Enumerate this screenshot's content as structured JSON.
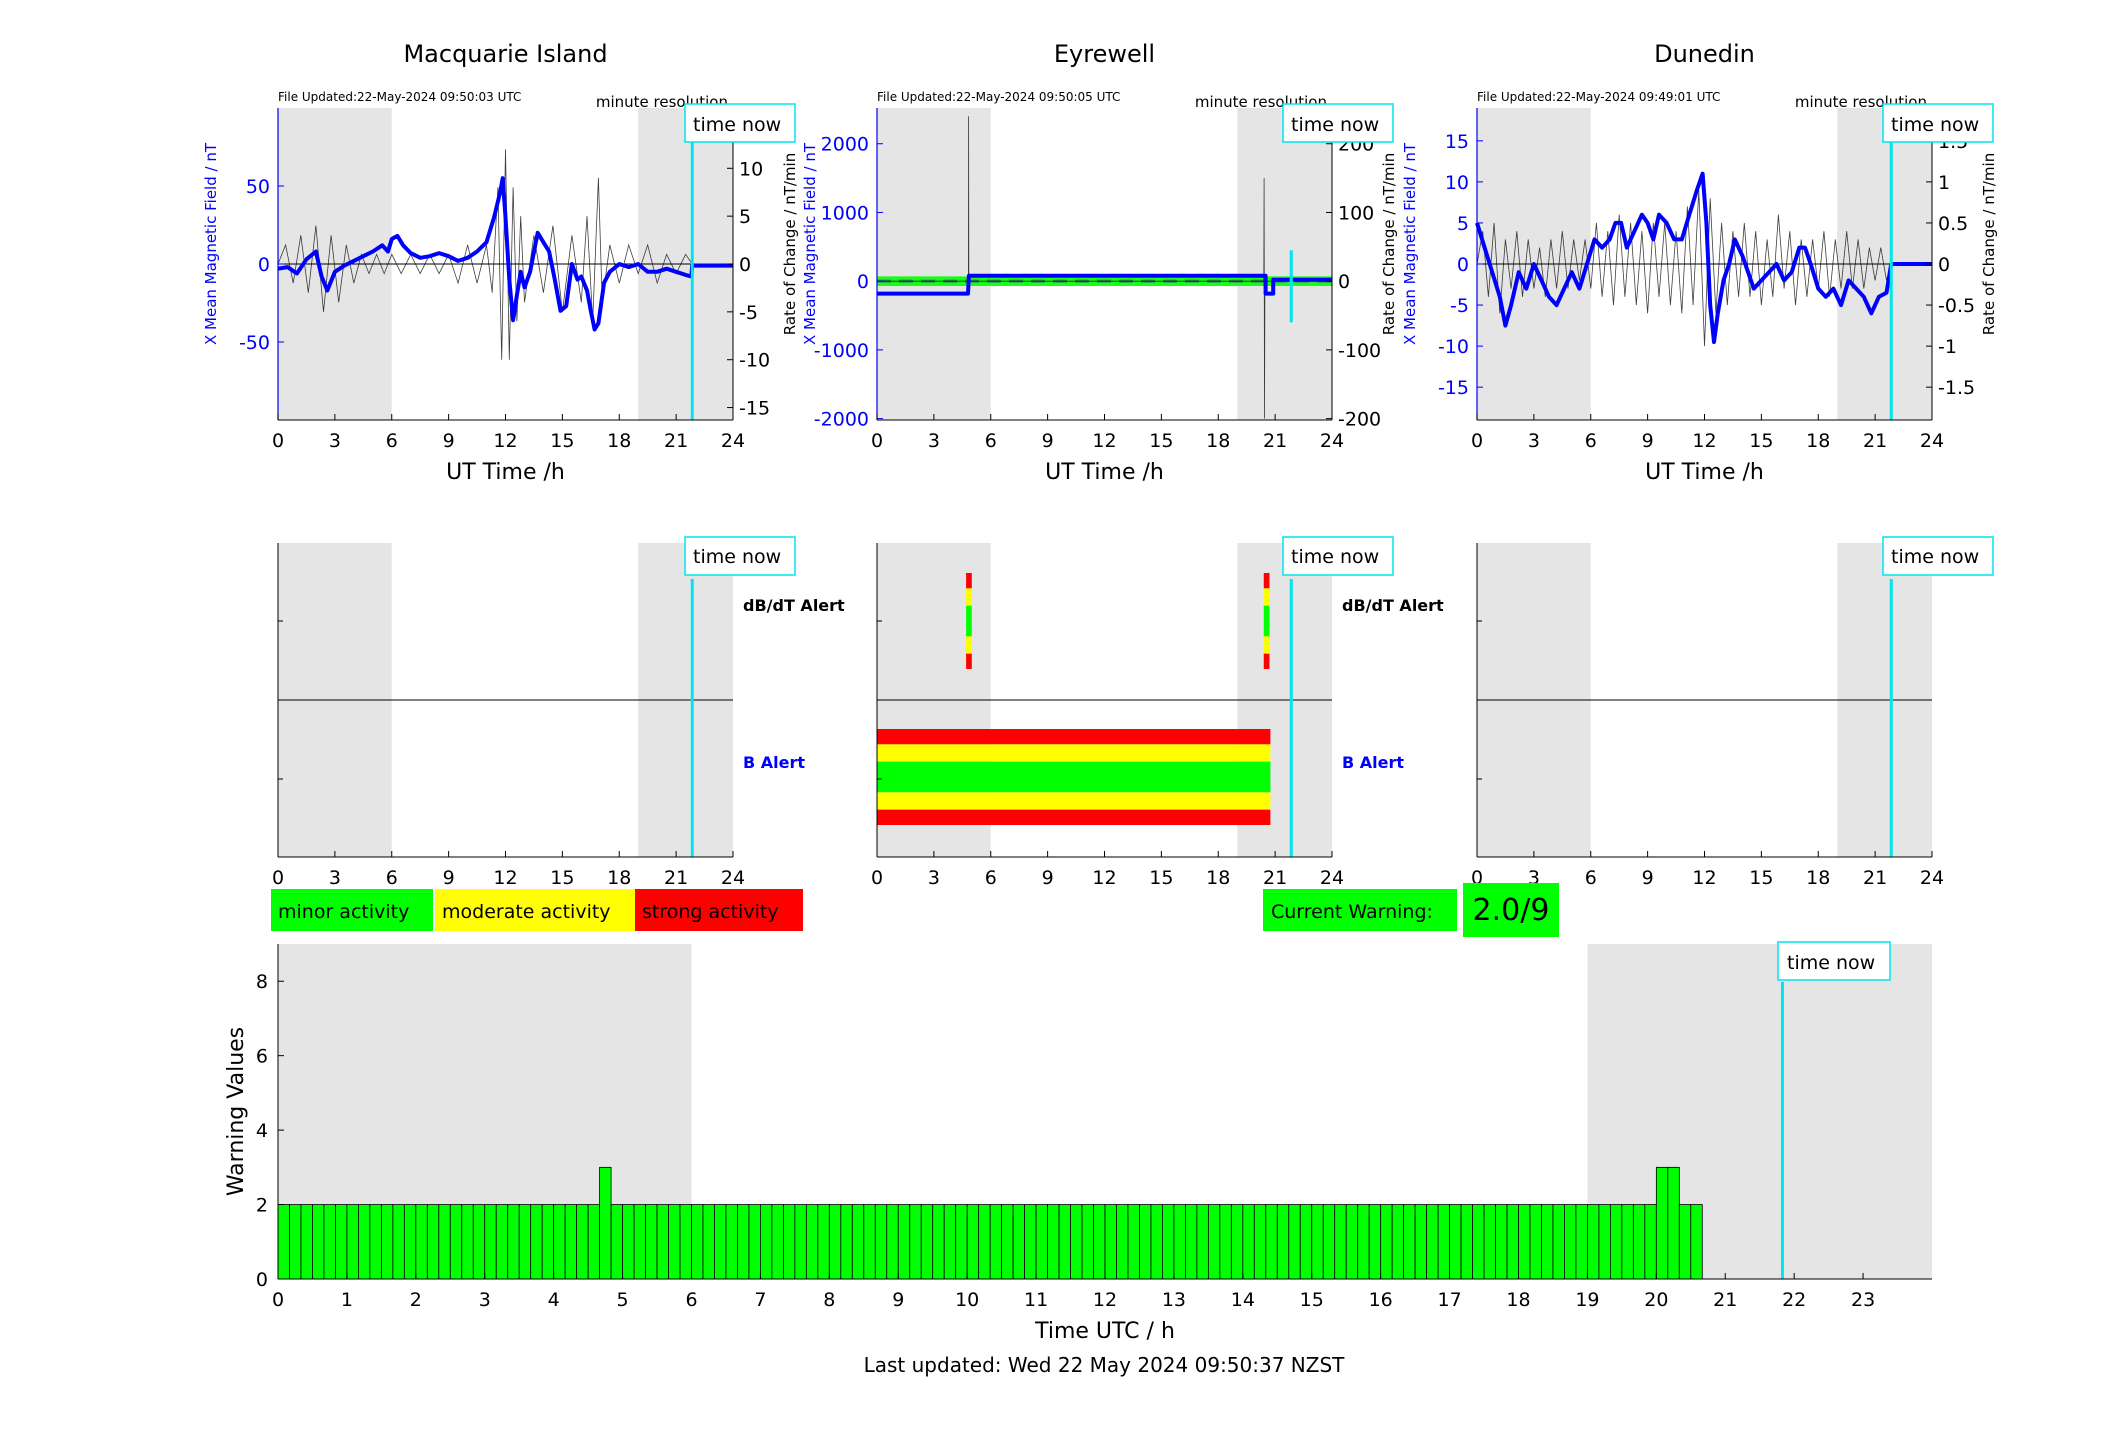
{
  "colors": {
    "x_field": "#0000ff",
    "rate": "#000000",
    "time_now": "#00e5ee",
    "night_shade": "#e5e5e5",
    "minor": "#00ff00",
    "moderate": "#ffff00",
    "strong": "#ff0000",
    "warning_bar": "#00ff00",
    "baseline_dash": "#2e8b57"
  },
  "time_now_label": "time now",
  "footer": {
    "last_updated": "Last updated: Wed 22 May 2024 09:50:37 NZST"
  },
  "legend": {
    "minor": "minor activity",
    "moderate": "moderate activity",
    "strong": "strong activity"
  },
  "current_warning": {
    "label": "Current Warning:",
    "value": "2.0/9"
  },
  "alert_labels": {
    "dbdt": "dB/dT Alert",
    "b": "B Alert"
  },
  "stations": [
    {
      "name": "Macquarie Island",
      "file_updated": "File Updated:22-May-2024 09:50:03 UTC",
      "resolution": "minute resolution",
      "left_label": "X Mean Magnetic Field / nT",
      "right_label": "Rate of Change / nT/min",
      "left_ylim": [
        -100,
        100
      ],
      "left_ticks": [
        -50,
        0,
        50
      ],
      "right_ylim": [
        -16.3,
        16.3
      ],
      "right_ticks": [
        -15,
        -10,
        -5,
        0,
        5,
        10,
        15
      ],
      "x_ticks": [
        0,
        3,
        6,
        9,
        12,
        15,
        18,
        21,
        24
      ],
      "x_label": "UT Time /h",
      "time_now": 21.85,
      "x_series": [
        [
          0,
          -3
        ],
        [
          0.5,
          -2
        ],
        [
          1,
          -6
        ],
        [
          1.5,
          3
        ],
        [
          2,
          8
        ],
        [
          2.3,
          -8
        ],
        [
          2.6,
          -17
        ],
        [
          3,
          -5
        ],
        [
          3.5,
          -1
        ],
        [
          4,
          2
        ],
        [
          4.5,
          5
        ],
        [
          5,
          8
        ],
        [
          5.5,
          12
        ],
        [
          5.8,
          8
        ],
        [
          6,
          16
        ],
        [
          6.3,
          18
        ],
        [
          6.6,
          12
        ],
        [
          7,
          7
        ],
        [
          7.5,
          4
        ],
        [
          8,
          5
        ],
        [
          8.5,
          7
        ],
        [
          9,
          5
        ],
        [
          9.5,
          2
        ],
        [
          10,
          4
        ],
        [
          10.5,
          8
        ],
        [
          11,
          14
        ],
        [
          11.4,
          30
        ],
        [
          11.7,
          45
        ],
        [
          11.85,
          55
        ],
        [
          12,
          30
        ],
        [
          12.2,
          -10
        ],
        [
          12.4,
          -36
        ],
        [
          12.6,
          -20
        ],
        [
          12.8,
          -5
        ],
        [
          13,
          -15
        ],
        [
          13.3,
          -5
        ],
        [
          13.7,
          20
        ],
        [
          14,
          14
        ],
        [
          14.3,
          8
        ],
        [
          14.6,
          -10
        ],
        [
          14.9,
          -30
        ],
        [
          15.2,
          -27
        ],
        [
          15.5,
          0
        ],
        [
          15.8,
          -10
        ],
        [
          16,
          -8
        ],
        [
          16.3,
          -17
        ],
        [
          16.5,
          -30
        ],
        [
          16.7,
          -42
        ],
        [
          16.9,
          -38
        ],
        [
          17.2,
          -12
        ],
        [
          17.5,
          -5
        ],
        [
          18,
          0
        ],
        [
          18.5,
          -2
        ],
        [
          19,
          0
        ],
        [
          19.5,
          -5
        ],
        [
          20,
          -5
        ],
        [
          20.5,
          -3
        ],
        [
          21,
          -5
        ],
        [
          21.5,
          -7
        ],
        [
          21.8,
          -8
        ],
        [
          21.85,
          -1
        ],
        [
          24,
          -1
        ]
      ],
      "rate_series": [
        [
          0,
          0
        ],
        [
          0.4,
          2
        ],
        [
          0.8,
          -2
        ],
        [
          1.2,
          3
        ],
        [
          1.6,
          -3
        ],
        [
          2,
          4
        ],
        [
          2.4,
          -5
        ],
        [
          2.8,
          3
        ],
        [
          3.2,
          -4
        ],
        [
          3.6,
          2
        ],
        [
          4,
          -2
        ],
        [
          4.4,
          1
        ],
        [
          4.8,
          -1
        ],
        [
          5.2,
          1
        ],
        [
          5.6,
          -1
        ],
        [
          6,
          1
        ],
        [
          6.5,
          -1
        ],
        [
          7,
          1
        ],
        [
          7.5,
          -1
        ],
        [
          8,
          1
        ],
        [
          8.5,
          -1
        ],
        [
          9,
          1
        ],
        [
          9.5,
          -2
        ],
        [
          10,
          2
        ],
        [
          10.5,
          -2
        ],
        [
          11,
          2
        ],
        [
          11.3,
          -3
        ],
        [
          11.6,
          8
        ],
        [
          11.8,
          -10
        ],
        [
          12,
          12
        ],
        [
          12.2,
          -10
        ],
        [
          12.4,
          8
        ],
        [
          12.6,
          -6
        ],
        [
          12.8,
          5
        ],
        [
          13,
          -4
        ],
        [
          13.5,
          3
        ],
        [
          14,
          -3
        ],
        [
          14.5,
          4
        ],
        [
          15,
          -5
        ],
        [
          15.5,
          3
        ],
        [
          16,
          -4
        ],
        [
          16.3,
          5
        ],
        [
          16.6,
          -6
        ],
        [
          16.9,
          9
        ],
        [
          17.1,
          -4
        ],
        [
          17.5,
          2
        ],
        [
          18,
          -2
        ],
        [
          18.5,
          2
        ],
        [
          19,
          -1
        ],
        [
          19.5,
          2
        ],
        [
          20,
          -2
        ],
        [
          20.5,
          1
        ],
        [
          21,
          -1
        ],
        [
          21.5,
          1
        ],
        [
          21.85,
          0
        ],
        [
          24,
          0
        ]
      ],
      "alerts": {
        "dbdt": [],
        "b": []
      }
    },
    {
      "name": "Eyrewell",
      "file_updated": "File Updated:22-May-2024 09:50:05 UTC",
      "resolution": "minute resolution",
      "left_label": "X Mean Magnetic Field / nT",
      "right_label": "Rate of Change / nT/min",
      "left_ylim": [
        -2020,
        2520
      ],
      "left_ticks": [
        -2000,
        -1000,
        0,
        1000,
        2000
      ],
      "right_ylim": [
        -202,
        252
      ],
      "right_ticks": [
        -200,
        -100,
        0,
        100,
        200
      ],
      "x_ticks": [
        0,
        3,
        6,
        9,
        12,
        15,
        18,
        21,
        24
      ],
      "x_label": "UT Time /h",
      "time_now": 21.85,
      "x_series": [
        [
          0,
          -180
        ],
        [
          4.8,
          -180
        ],
        [
          4.85,
          80
        ],
        [
          20.5,
          80
        ],
        [
          20.5,
          -180
        ],
        [
          20.9,
          -180
        ],
        [
          20.9,
          20
        ],
        [
          24,
          20
        ]
      ],
      "rate_series": [
        [
          0,
          0
        ],
        [
          4.82,
          0
        ],
        [
          4.83,
          240
        ],
        [
          4.84,
          0
        ],
        [
          20.4,
          0
        ],
        [
          20.42,
          150
        ],
        [
          20.44,
          -200
        ],
        [
          20.46,
          0
        ],
        [
          24,
          0
        ]
      ],
      "alerts": {
        "dbdt": [
          {
            "start": 4.7,
            "end": 5.0
          },
          {
            "start": 20.4,
            "end": 20.7
          }
        ],
        "b": [
          {
            "start": 0,
            "end": 20.75
          }
        ]
      }
    },
    {
      "name": "Dunedin",
      "file_updated": "File Updated:22-May-2024 09:49:01 UTC",
      "resolution": "minute resolution",
      "left_label": "X Mean Magnetic Field / nT",
      "right_label": "Rate of Change / nT/min",
      "left_ylim": [
        -19,
        19
      ],
      "left_ticks": [
        -15,
        -10,
        -5,
        0,
        5,
        10,
        15
      ],
      "right_ylim": [
        -1.9,
        1.9
      ],
      "right_ticks": [
        -1.5,
        -1,
        -0.5,
        0,
        0.5,
        1,
        1.5
      ],
      "x_ticks": [
        0,
        3,
        6,
        9,
        12,
        15,
        18,
        21,
        24
      ],
      "x_label": "UT Time /h",
      "time_now": 21.85,
      "x_series": [
        [
          0,
          5
        ],
        [
          0.4,
          2
        ],
        [
          0.8,
          -1
        ],
        [
          1.2,
          -4
        ],
        [
          1.5,
          -7.5
        ],
        [
          1.8,
          -5
        ],
        [
          2.2,
          -1
        ],
        [
          2.6,
          -3
        ],
        [
          3,
          0
        ],
        [
          3.4,
          -2
        ],
        [
          3.8,
          -4
        ],
        [
          4.2,
          -5
        ],
        [
          4.6,
          -3
        ],
        [
          5,
          -1
        ],
        [
          5.4,
          -3
        ],
        [
          5.8,
          0
        ],
        [
          6.2,
          3
        ],
        [
          6.6,
          2
        ],
        [
          7,
          3
        ],
        [
          7.3,
          5
        ],
        [
          7.6,
          5
        ],
        [
          7.9,
          2
        ],
        [
          8.3,
          4
        ],
        [
          8.7,
          6
        ],
        [
          9,
          5
        ],
        [
          9.3,
          3
        ],
        [
          9.6,
          6
        ],
        [
          10,
          5
        ],
        [
          10.4,
          3
        ],
        [
          10.8,
          3
        ],
        [
          11.2,
          6
        ],
        [
          11.6,
          9
        ],
        [
          11.9,
          11
        ],
        [
          12.1,
          5
        ],
        [
          12.3,
          -5
        ],
        [
          12.5,
          -9.5
        ],
        [
          12.7,
          -6
        ],
        [
          13,
          -2
        ],
        [
          13.3,
          0
        ],
        [
          13.6,
          3
        ],
        [
          14,
          1
        ],
        [
          14.3,
          -1
        ],
        [
          14.6,
          -3
        ],
        [
          15,
          -2
        ],
        [
          15.4,
          -1
        ],
        [
          15.8,
          0
        ],
        [
          16.2,
          -2
        ],
        [
          16.6,
          -1
        ],
        [
          17,
          2
        ],
        [
          17.3,
          2
        ],
        [
          17.6,
          0
        ],
        [
          18,
          -3
        ],
        [
          18.4,
          -4
        ],
        [
          18.8,
          -3
        ],
        [
          19.2,
          -5
        ],
        [
          19.6,
          -2
        ],
        [
          20,
          -3
        ],
        [
          20.4,
          -4
        ],
        [
          20.8,
          -6
        ],
        [
          21.2,
          -4
        ],
        [
          21.6,
          -3.5
        ],
        [
          21.85,
          0
        ],
        [
          24,
          0
        ]
      ],
      "rate_series": [
        [
          0,
          0
        ],
        [
          0.3,
          0.4
        ],
        [
          0.6,
          -0.4
        ],
        [
          0.9,
          0.5
        ],
        [
          1.2,
          -0.6
        ],
        [
          1.5,
          0.3
        ],
        [
          1.8,
          -0.3
        ],
        [
          2.1,
          0.4
        ],
        [
          2.4,
          -0.4
        ],
        [
          2.7,
          0.3
        ],
        [
          3,
          -0.3
        ],
        [
          3.3,
          0.2
        ],
        [
          3.6,
          -0.4
        ],
        [
          3.9,
          0.3
        ],
        [
          4.2,
          -0.3
        ],
        [
          4.5,
          0.4
        ],
        [
          4.8,
          -0.3
        ],
        [
          5.1,
          0.3
        ],
        [
          5.4,
          -0.2
        ],
        [
          5.7,
          0.3
        ],
        [
          6,
          -0.3
        ],
        [
          6.3,
          0.5
        ],
        [
          6.6,
          -0.4
        ],
        [
          6.9,
          0.4
        ],
        [
          7.2,
          -0.5
        ],
        [
          7.5,
          0.6
        ],
        [
          7.8,
          -0.4
        ],
        [
          8.1,
          0.5
        ],
        [
          8.4,
          -0.5
        ],
        [
          8.7,
          0.4
        ],
        [
          9,
          -0.6
        ],
        [
          9.3,
          0.5
        ],
        [
          9.6,
          -0.4
        ],
        [
          9.9,
          0.5
        ],
        [
          10.2,
          -0.5
        ],
        [
          10.5,
          0.4
        ],
        [
          10.8,
          -0.6
        ],
        [
          11.1,
          0.7
        ],
        [
          11.4,
          -0.5
        ],
        [
          11.7,
          0.9
        ],
        [
          12,
          -1.0
        ],
        [
          12.3,
          0.8
        ],
        [
          12.6,
          -0.6
        ],
        [
          12.9,
          0.5
        ],
        [
          13.2,
          -0.5
        ],
        [
          13.5,
          0.4
        ],
        [
          13.8,
          -0.4
        ],
        [
          14.1,
          0.5
        ],
        [
          14.4,
          -0.4
        ],
        [
          14.7,
          0.4
        ],
        [
          15,
          -0.5
        ],
        [
          15.3,
          0.3
        ],
        [
          15.6,
          -0.4
        ],
        [
          15.9,
          0.6
        ],
        [
          16.2,
          -0.3
        ],
        [
          16.5,
          0.4
        ],
        [
          16.8,
          -0.5
        ],
        [
          17.1,
          0.3
        ],
        [
          17.4,
          -0.4
        ],
        [
          17.7,
          0.3
        ],
        [
          18,
          -0.3
        ],
        [
          18.3,
          0.4
        ],
        [
          18.6,
          -0.4
        ],
        [
          18.9,
          0.3
        ],
        [
          19.2,
          -0.3
        ],
        [
          19.5,
          0.4
        ],
        [
          19.8,
          -0.3
        ],
        [
          20.1,
          0.3
        ],
        [
          20.4,
          -0.3
        ],
        [
          20.7,
          0.2
        ],
        [
          21,
          -0.2
        ],
        [
          21.3,
          0.2
        ],
        [
          21.6,
          -0.2
        ],
        [
          21.85,
          0
        ],
        [
          24,
          0
        ]
      ],
      "alerts": {
        "dbdt": [],
        "b": []
      }
    }
  ],
  "chart_data": {
    "type": "bar",
    "title": "",
    "xlabel": "Time UTC / h",
    "ylabel": "Warning Values",
    "xlim": [
      0,
      24
    ],
    "ylim": [
      0,
      9
    ],
    "x_ticks": [
      0,
      1,
      2,
      3,
      4,
      5,
      6,
      7,
      8,
      9,
      10,
      11,
      12,
      13,
      14,
      15,
      16,
      17,
      18,
      19,
      20,
      21,
      22,
      23
    ],
    "y_ticks": [
      0,
      2,
      4,
      6,
      8
    ],
    "bin_hours": 0.16666667,
    "night_shading": [
      [
        0,
        6
      ],
      [
        19,
        24
      ]
    ],
    "time_now": 21.83,
    "values": [
      2,
      2,
      2,
      2,
      2,
      2,
      2,
      2,
      2,
      2,
      2,
      2,
      2,
      2,
      2,
      2,
      2,
      2,
      2,
      2,
      2,
      2,
      2,
      2,
      2,
      2,
      2,
      2,
      3,
      2,
      2,
      2,
      2,
      2,
      2,
      2,
      2,
      2,
      2,
      2,
      2,
      2,
      2,
      2,
      2,
      2,
      2,
      2,
      2,
      2,
      2,
      2,
      2,
      2,
      2,
      2,
      2,
      2,
      2,
      2,
      2,
      2,
      2,
      2,
      2,
      2,
      2,
      2,
      2,
      2,
      2,
      2,
      2,
      2,
      2,
      2,
      2,
      2,
      2,
      2,
      2,
      2,
      2,
      2,
      2,
      2,
      2,
      2,
      2,
      2,
      2,
      2,
      2,
      2,
      2,
      2,
      2,
      2,
      2,
      2,
      2,
      2,
      2,
      2,
      2,
      2,
      2,
      2,
      2,
      2,
      2,
      2,
      2,
      2,
      2,
      2,
      2,
      2,
      2,
      2,
      3,
      3,
      2,
      2
    ]
  }
}
